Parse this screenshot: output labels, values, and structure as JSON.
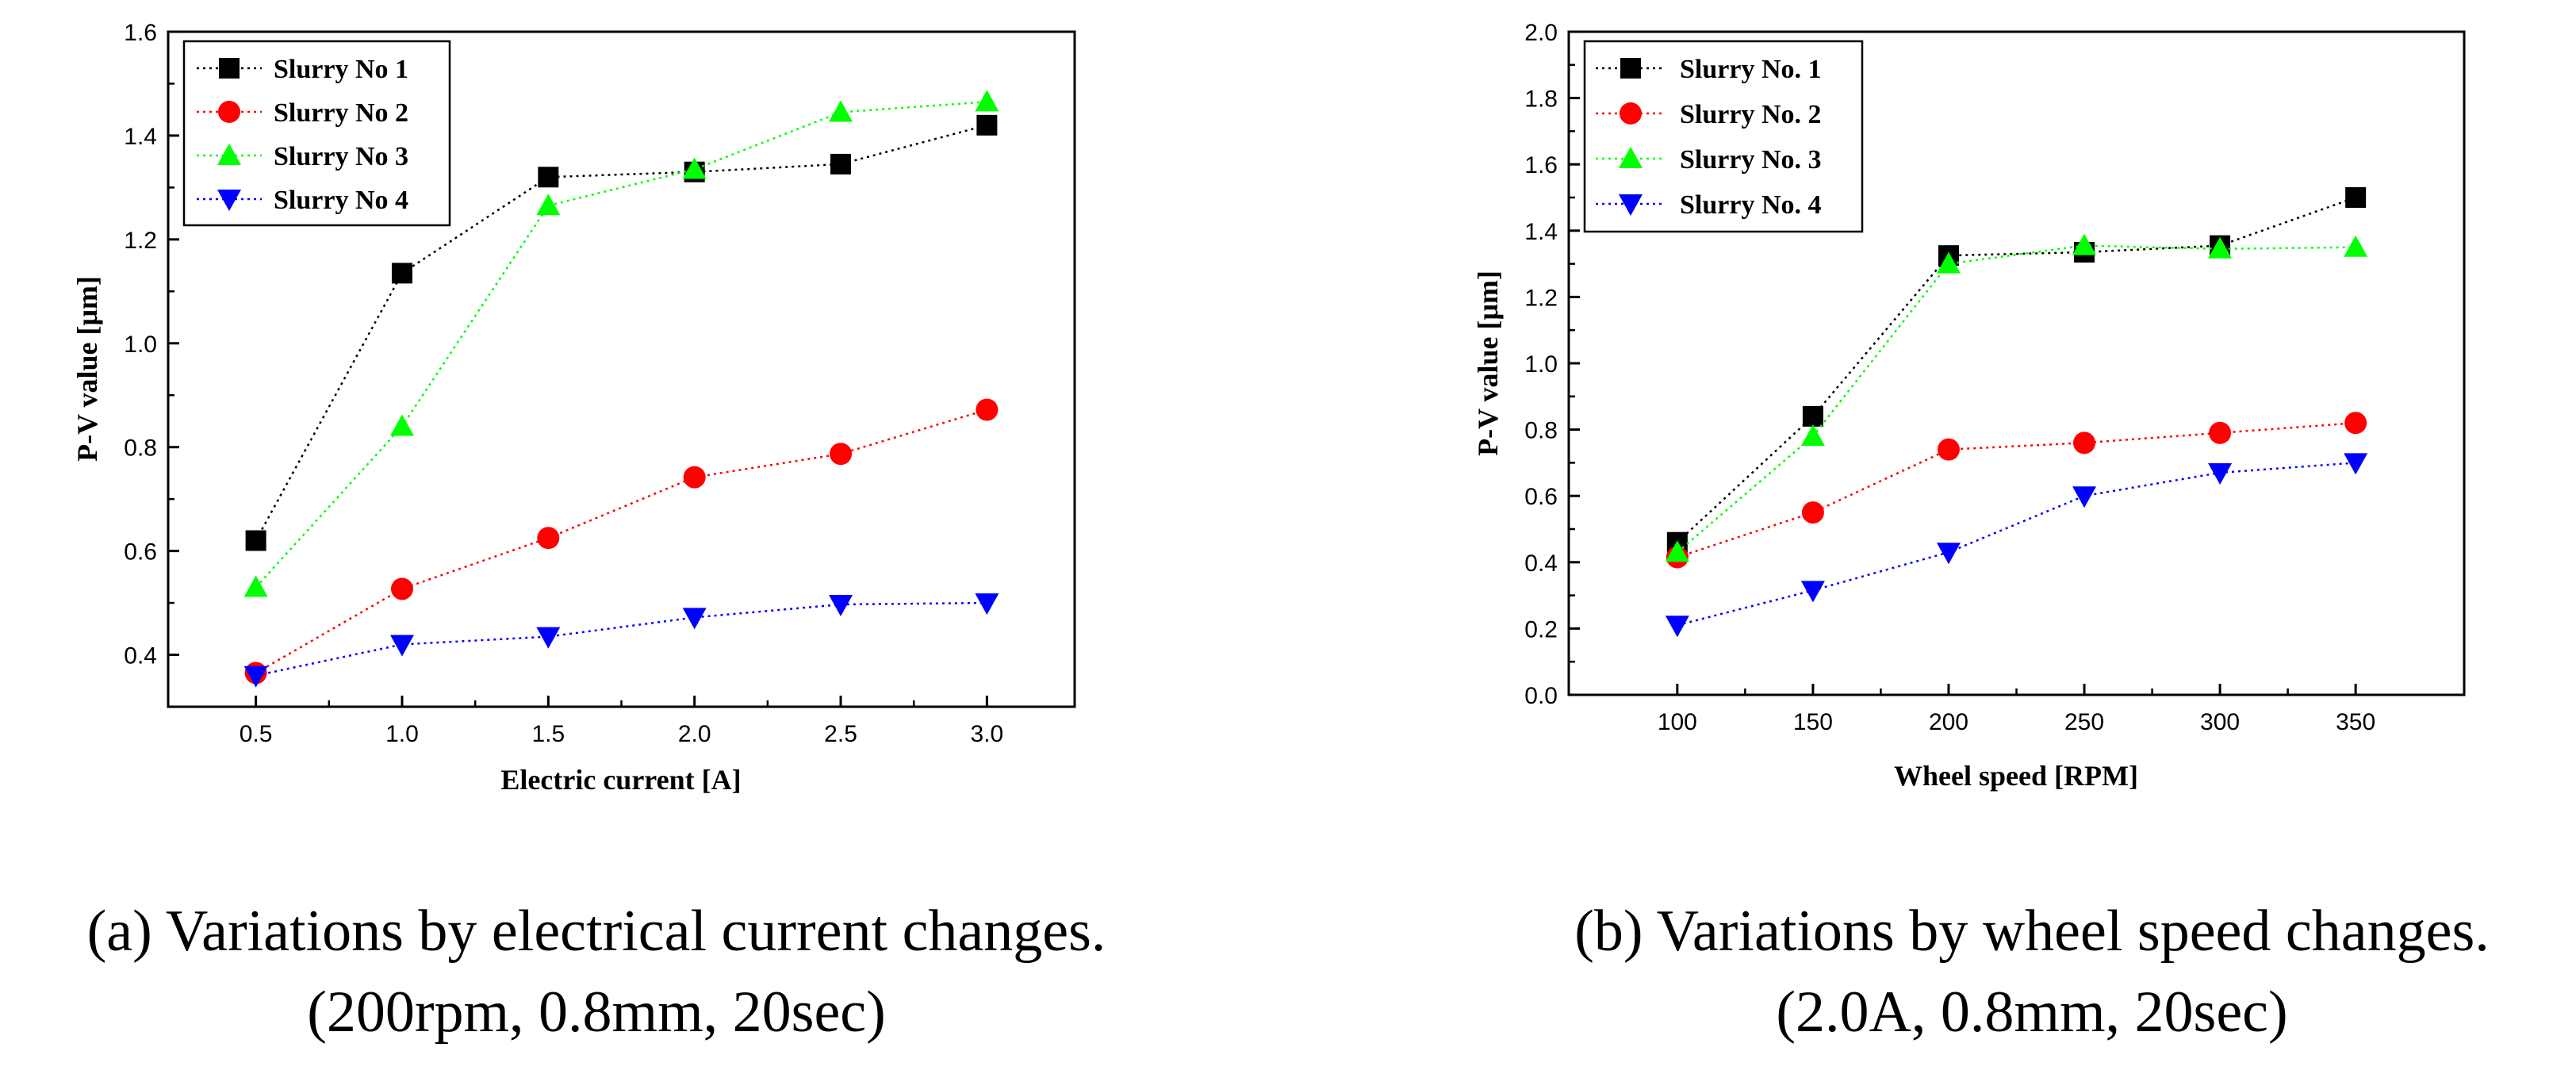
{
  "chart_data": [
    {
      "type": "line",
      "xlabel": "Electric current [A]",
      "ylabel": "P-V value [μm]",
      "xlim": [
        0.2,
        3.3
      ],
      "ylim": [
        0.3,
        1.6
      ],
      "x_ticks": [
        "0.5",
        "1.0",
        "1.5",
        "2.0",
        "2.5",
        "3.0"
      ],
      "y_ticks": [
        "0.4",
        "0.6",
        "0.8",
        "1.0",
        "1.2",
        "1.4",
        "1.6"
      ],
      "x": [
        0.5,
        1.0,
        1.5,
        2.0,
        2.5,
        3.0
      ],
      "legend_position": "top-left",
      "grid": false,
      "series": [
        {
          "name": "Slurry No 1",
          "values": [
            0.62,
            1.135,
            1.32,
            1.33,
            1.345,
            1.42
          ],
          "color": "#000000",
          "marker": "square"
        },
        {
          "name": "Slurry No 2",
          "values": [
            0.365,
            0.527,
            0.625,
            0.742,
            0.787,
            0.872
          ],
          "color": "#ff0000",
          "marker": "circle"
        },
        {
          "name": "Slurry No 3",
          "values": [
            0.53,
            0.84,
            1.265,
            1.335,
            1.445,
            1.465
          ],
          "color": "#00ff00",
          "marker": "triangle-up"
        },
        {
          "name": "Slurry No 4",
          "values": [
            0.36,
            0.42,
            0.435,
            0.472,
            0.497,
            0.5
          ],
          "color": "#0000ff",
          "marker": "triangle-down"
        }
      ],
      "caption_line1": "(a) Variations by electrical current changes.",
      "caption_line2": "(200rpm, 0.8mm, 20sec)"
    },
    {
      "type": "line",
      "xlabel": "Wheel speed [RPM]",
      "ylabel": "P-V value [μm]",
      "xlim": [
        60,
        390
      ],
      "ylim": [
        0.0,
        2.0
      ],
      "x_ticks": [
        "100",
        "150",
        "200",
        "250",
        "300",
        "350"
      ],
      "y_ticks": [
        "0.0",
        "0.2",
        "0.4",
        "0.6",
        "0.8",
        "1.0",
        "1.2",
        "1.4",
        "1.6",
        "1.8",
        "2.0"
      ],
      "x": [
        100,
        150,
        200,
        250,
        300,
        350
      ],
      "legend_position": "top-left",
      "grid": false,
      "series": [
        {
          "name": "Slurry No. 1",
          "values": [
            0.46,
            0.84,
            1.325,
            1.335,
            1.355,
            1.5
          ],
          "color": "#000000",
          "marker": "square"
        },
        {
          "name": "Slurry No. 2",
          "values": [
            0.415,
            0.55,
            0.74,
            0.76,
            0.79,
            0.82
          ],
          "color": "#ff0000",
          "marker": "circle"
        },
        {
          "name": "Slurry No. 3",
          "values": [
            0.43,
            0.78,
            1.3,
            1.355,
            1.345,
            1.35
          ],
          "color": "#00ff00",
          "marker": "triangle-up"
        },
        {
          "name": "Slurry No. 4",
          "values": [
            0.21,
            0.315,
            0.43,
            0.6,
            0.67,
            0.7
          ],
          "color": "#0000ff",
          "marker": "triangle-down"
        }
      ],
      "caption_line1": "(b) Variations by wheel speed changes.",
      "caption_line2": "(2.0A, 0.8mm, 20sec)"
    }
  ]
}
